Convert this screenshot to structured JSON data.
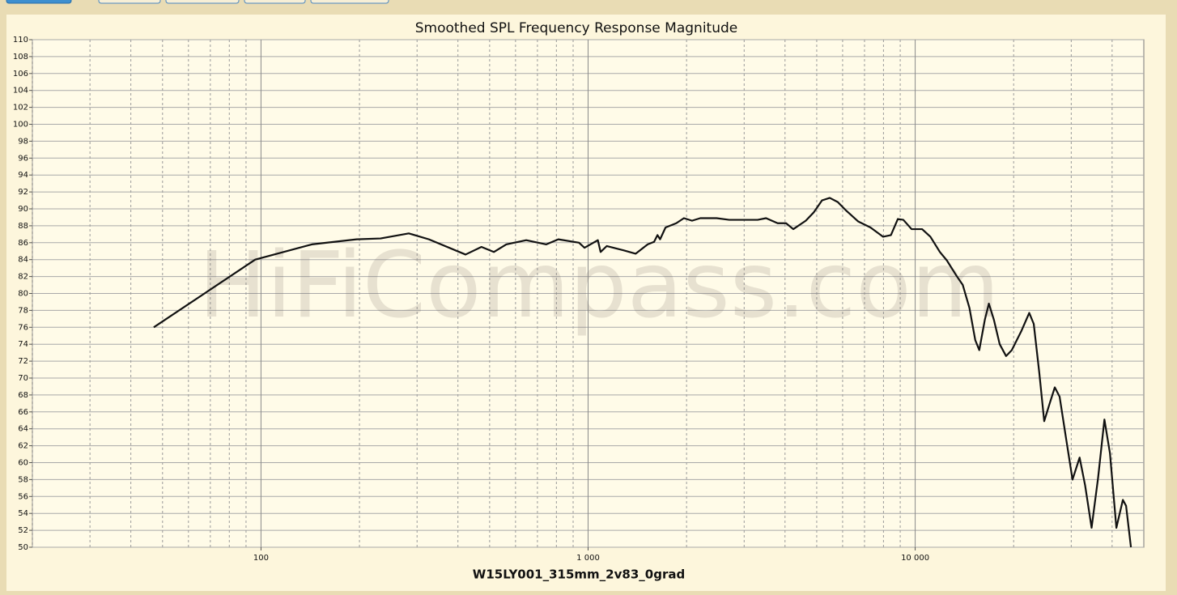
{
  "chart_data": {
    "type": "line",
    "title": "Smoothed SPL Frequency Response Magnitude",
    "xlabel": "W15LY001_315mm_2v83_0grad",
    "watermark": "HiFiCompass.com",
    "log_x": true,
    "grid": true,
    "color": "#111111",
    "xlim": [
      20,
      50000
    ],
    "xticks": [
      100,
      {
        "value": 1000,
        "label": "1 000"
      },
      {
        "value": 10000,
        "label": "10 000"
      }
    ],
    "x_minor_ticks": [
      20,
      30,
      40,
      50,
      60,
      70,
      80,
      90,
      200,
      300,
      400,
      500,
      600,
      700,
      800,
      900,
      2000,
      3000,
      4000,
      5000,
      6000,
      7000,
      8000,
      9000,
      20000,
      30000,
      40000
    ],
    "ylim": [
      50,
      110
    ],
    "yticks": [
      50,
      52,
      54,
      56,
      58,
      60,
      62,
      64,
      66,
      68,
      70,
      72,
      74,
      76,
      78,
      80,
      82,
      84,
      86,
      88,
      90,
      92,
      94,
      96,
      98,
      100,
      102,
      104,
      106,
      108,
      110
    ],
    "x": [
      47,
      96,
      143,
      196,
      232,
      283,
      326,
      422,
      472,
      515,
      562,
      647,
      745,
      811,
      938,
      975,
      1071,
      1092,
      1140,
      1283,
      1398,
      1521,
      1591,
      1630,
      1660,
      1725,
      1860,
      1963,
      2079,
      2203,
      2471,
      2700,
      3300,
      3500,
      3798,
      4030,
      4240,
      4630,
      4900,
      5190,
      5480,
      5800,
      6150,
      6700,
      7300,
      7980,
      8430,
      8850,
      9200,
      9750,
      10500,
      11130,
      11900,
      12500,
      13370,
      13980,
      14650,
      15260,
      15700,
      16330,
      16800,
      17400,
      18130,
      18960,
      19740,
      21080,
      22320,
      23040,
      23960,
      24800,
      25680,
      26720,
      27640,
      28890,
      30270,
      31820,
      33080,
      34620,
      36240,
      37890,
      39400,
      41220,
      43150,
      44130,
      45670
    ],
    "values": [
      76,
      84,
      85.8,
      86.4,
      86.5,
      87.1,
      86.4,
      84.6,
      85.5,
      84.9,
      85.8,
      86.3,
      85.8,
      86.4,
      86,
      85.4,
      86.3,
      84.9,
      85.6,
      85.1,
      84.7,
      85.8,
      86.1,
      86.9,
      86.4,
      87.8,
      88.3,
      88.9,
      88.6,
      88.9,
      88.9,
      88.7,
      88.7,
      88.9,
      88.3,
      88.3,
      87.6,
      88.6,
      89.6,
      91,
      91.3,
      90.8,
      89.8,
      88.5,
      87.8,
      86.7,
      86.9,
      88.8,
      88.7,
      87.6,
      87.6,
      86.7,
      84.9,
      83.9,
      82.1,
      81,
      78.3,
      74.5,
      73.3,
      76.9,
      78.8,
      76.9,
      74,
      72.6,
      73.3,
      75.5,
      77.7,
      76.4,
      70.6,
      64.9,
      66.8,
      68.9,
      67.8,
      63,
      58,
      60.6,
      57.3,
      52.3,
      58.2,
      65.1,
      61.1,
      52.3,
      55.6,
      54.9,
      50
    ]
  }
}
